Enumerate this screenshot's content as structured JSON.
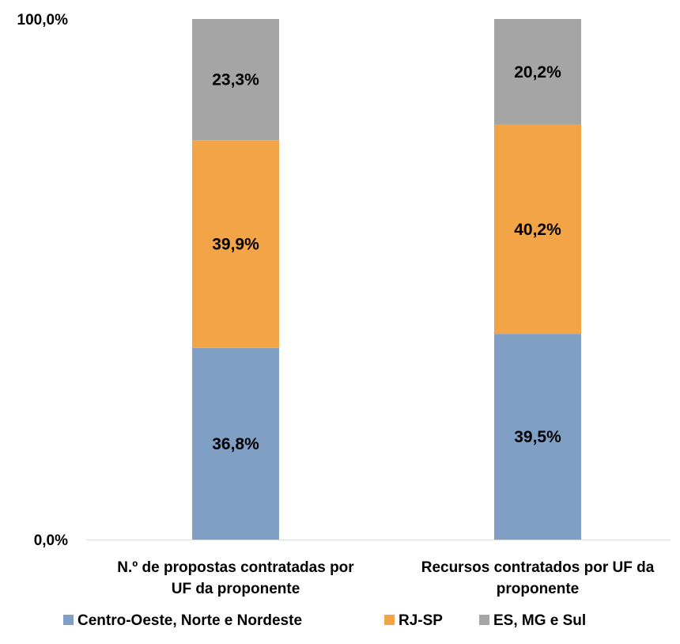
{
  "chart_data": {
    "type": "bar",
    "stacked": true,
    "percent": true,
    "categories": [
      [
        "N.º de propostas contratadas por",
        "UF da proponente"
      ],
      [
        "Recursos contratados por UF da",
        "proponente"
      ]
    ],
    "series": [
      {
        "name": "Centro-Oeste, Norte e Nordeste",
        "color": "#7f9fc5",
        "values": [
          36.8,
          39.5
        ],
        "labels": [
          "36,8%",
          "39,5%"
        ]
      },
      {
        "name": "RJ-SP",
        "color": "#f3a447",
        "values": [
          39.9,
          40.2
        ],
        "labels": [
          "39,9%",
          "40,2%"
        ]
      },
      {
        "name": "ES, MG e Sul",
        "color": "#a5a5a5",
        "values": [
          23.3,
          20.2
        ],
        "labels": [
          "23,3%",
          "20,2%"
        ]
      }
    ],
    "yticks": [
      {
        "value": 0,
        "label": "0,0%"
      },
      {
        "value": 100,
        "label": "100,0%"
      }
    ],
    "ylim": [
      0,
      100
    ],
    "grid": false,
    "legend": "bottom"
  }
}
